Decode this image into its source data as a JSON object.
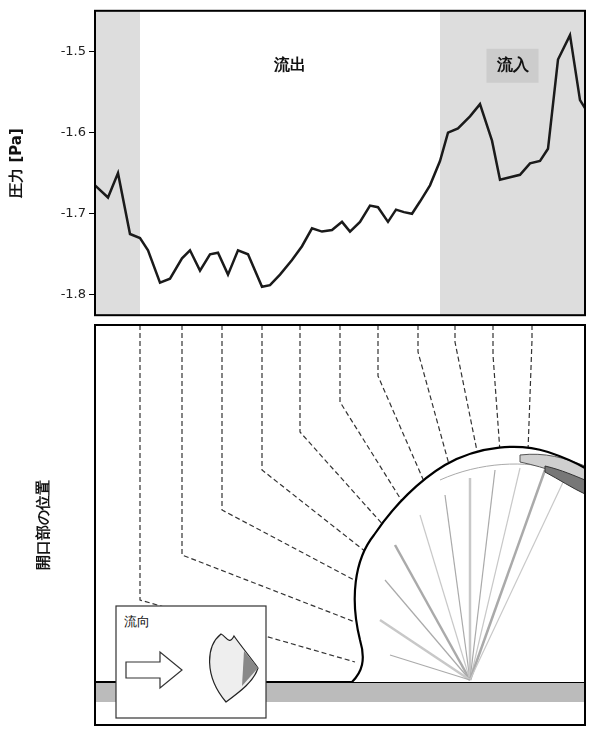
{
  "chart_data": {
    "type": "line",
    "ylabel": "圧力 [Pa]",
    "x": [
      0,
      1.3,
      2.3,
      3.5,
      4.5,
      5.3,
      6.5,
      7.5,
      8.7,
      9.5,
      10.5,
      11.5,
      12.3,
      13.3,
      14.3,
      15.3,
      16.7,
      17.5,
      18.5,
      19.7,
      20.7,
      21.7,
      22.7,
      23.7,
      24.7,
      25.5,
      26.5,
      27.5,
      28.3,
      29.3,
      30.1,
      30.9,
      31.7,
      32.5,
      33.5,
      34.5,
      35.3,
      36.3,
      37.5,
      38.5,
      39.7,
      40.5,
      41.5,
      42.5,
      43.5,
      44.5,
      45.3,
      46.3,
      47.5,
      48.5,
      49
    ],
    "values": [
      -1.665,
      -1.68,
      -1.65,
      -1.725,
      -1.73,
      -1.745,
      -1.785,
      -1.78,
      -1.755,
      -1.745,
      -1.77,
      -1.75,
      -1.748,
      -1.775,
      -1.745,
      -1.75,
      -1.79,
      -1.788,
      -1.775,
      -1.757,
      -1.74,
      -1.718,
      -1.722,
      -1.72,
      -1.71,
      -1.722,
      -1.71,
      -1.69,
      -1.692,
      -1.71,
      -1.695,
      -1.698,
      -1.7,
      -1.685,
      -1.665,
      -1.635,
      -1.6,
      -1.595,
      -1.58,
      -1.565,
      -1.61,
      -1.658,
      -1.655,
      -1.652,
      -1.638,
      -1.635,
      -1.62,
      -1.51,
      -1.48,
      -1.56,
      -1.57
    ],
    "color": "#1a1a1a",
    "xlim": [
      0,
      49
    ],
    "ylim": [
      -1.825,
      -1.45
    ],
    "yticks": [
      -1.5,
      -1.6,
      -1.7,
      -1.8
    ],
    "tick_labels": "y",
    "grid": false,
    "regions": [
      {
        "from": 0,
        "to": 4.5,
        "color": "#dddddd"
      },
      {
        "from": 4.5,
        "to": 34.5,
        "label": "流出",
        "color": "#ffffff"
      },
      {
        "from": 34.5,
        "to": 49,
        "label": "流入",
        "color": "#dddddd"
      }
    ]
  },
  "diagram": {
    "ylabel": "開口部の位置",
    "inset_label": "流向"
  }
}
